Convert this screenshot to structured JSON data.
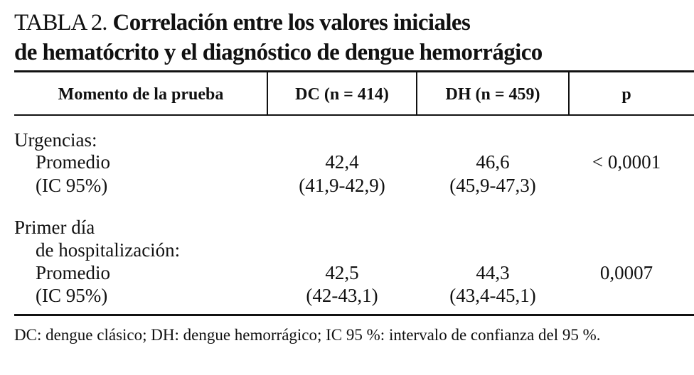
{
  "title": {
    "label": "TABLA 2.",
    "lines": [
      "Correlación entre los valores iniciales",
      "de hematócrito y el diagnóstico de dengue hemorrágico"
    ]
  },
  "table": {
    "header": [
      "Momento de la prueba",
      "DC (n = 414)",
      "DH (n = 459)",
      "p"
    ],
    "groups": [
      {
        "label": [
          "Urgencias:"
        ],
        "mean": {
          "label": "Promedio",
          "dc": "42,4",
          "dh": "46,6",
          "p": "< 0,0001"
        },
        "ci": {
          "label": "(IC 95%)",
          "dc": "(41,9-42,9)",
          "dh": "(45,9-47,3)"
        }
      },
      {
        "label": [
          "Primer día",
          "de hospitalización:"
        ],
        "mean": {
          "label": "Promedio",
          "dc": "42,5",
          "dh": "44,3",
          "p": "0,0007"
        },
        "ci": {
          "label": "(IC 95%)",
          "dc": "(42-43,1)",
          "dh": "(43,4-45,1)"
        }
      }
    ]
  },
  "footnote": "DC: dengue clásico; DH: dengue hemorrágico; IC 95 %: intervalo de confianza del 95 %."
}
